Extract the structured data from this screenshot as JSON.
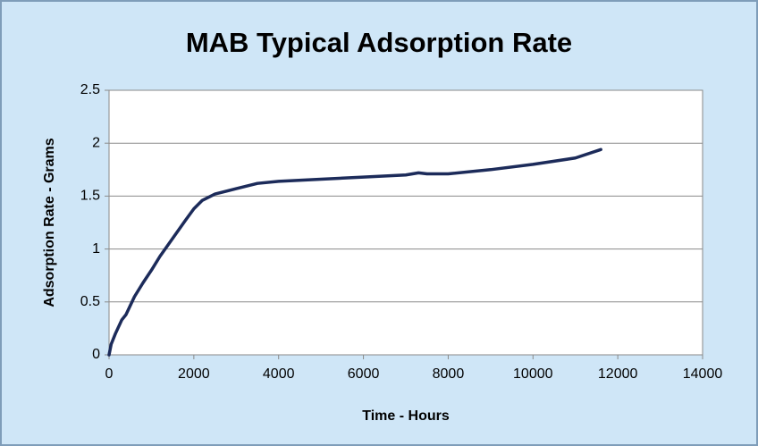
{
  "chart_data": {
    "type": "line",
    "title": "MAB Typical Adsorption Rate",
    "xlabel": "Time - Hours",
    "ylabel": "Adsorption Rate - Grams",
    "x": [
      0,
      50,
      150,
      300,
      400,
      600,
      800,
      1000,
      1200,
      1500,
      1800,
      2000,
      2200,
      2500,
      3000,
      3500,
      4000,
      5000,
      6000,
      7000,
      7300,
      7500,
      8000,
      9000,
      10000,
      11000,
      11600
    ],
    "values": [
      0,
      0.1,
      0.2,
      0.33,
      0.38,
      0.55,
      0.68,
      0.8,
      0.93,
      1.1,
      1.27,
      1.38,
      1.46,
      1.52,
      1.57,
      1.62,
      1.64,
      1.66,
      1.68,
      1.7,
      1.72,
      1.71,
      1.71,
      1.75,
      1.8,
      1.86,
      1.94
    ],
    "color": "#1c2b5a",
    "xlim": [
      0,
      14000
    ],
    "xticks": [
      0,
      2000,
      4000,
      6000,
      8000,
      10000,
      12000,
      14000
    ],
    "ylim": [
      0,
      2.5
    ],
    "yticks": [
      0,
      0.5,
      1,
      1.5,
      2,
      2.5
    ],
    "grid": true
  }
}
